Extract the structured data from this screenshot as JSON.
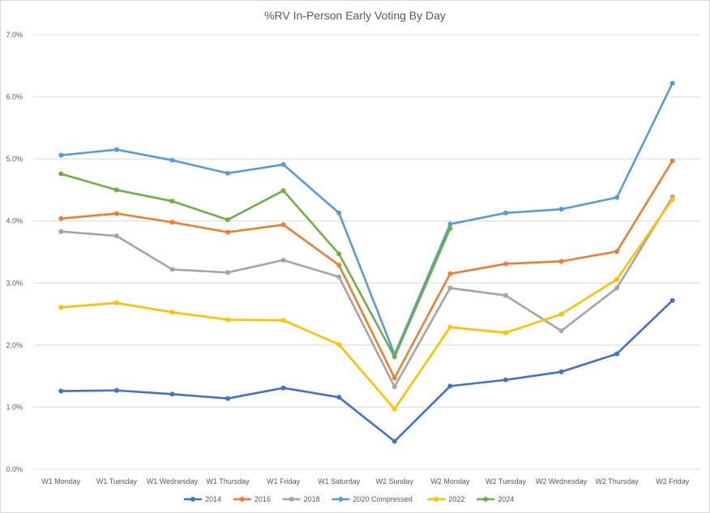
{
  "chart_data": {
    "type": "line",
    "title": "%RV In-Person Early Voting By Day",
    "xlabel": "",
    "ylabel": "",
    "ylim": [
      0,
      7
    ],
    "y_tick_labels": [
      "0.0%",
      "1.0%",
      "2.0%",
      "3.0%",
      "4.0%",
      "5.0%",
      "6.0%",
      "7.0%"
    ],
    "grid": true,
    "legend_position": "bottom",
    "categories": [
      "W1 Monday",
      "W1 Tuesday",
      "W1 Wednesday",
      "W1 Thursday",
      "W1 Friday",
      "W1 Saturday",
      "W2 Sunday",
      "W2 Monday",
      "W2 Tuesday",
      "W2 Wednesday",
      "W2 Thursday",
      "W2 Friday"
    ],
    "series": [
      {
        "name": "2014",
        "color": "#4472C4",
        "values": [
          1.26,
          1.27,
          1.21,
          1.14,
          1.31,
          1.16,
          0.45,
          1.34,
          1.44,
          1.57,
          1.86,
          2.72
        ]
      },
      {
        "name": "2016",
        "color": "#ED7D31",
        "values": [
          4.04,
          4.12,
          3.98,
          3.82,
          3.94,
          3.29,
          1.47,
          3.15,
          3.31,
          3.35,
          3.51,
          4.97
        ]
      },
      {
        "name": "2018",
        "color": "#A5A5A5",
        "values": [
          3.83,
          3.76,
          3.22,
          3.17,
          3.37,
          3.1,
          1.33,
          2.92,
          2.8,
          2.23,
          2.92,
          4.39
        ]
      },
      {
        "name": "2020 Compressed",
        "color": "#5B9BD5",
        "values": [
          5.06,
          5.15,
          4.98,
          4.77,
          4.91,
          4.13,
          1.85,
          3.95,
          4.13,
          4.19,
          4.38,
          6.22
        ]
      },
      {
        "name": "2022",
        "color": "#FFC000",
        "values": [
          2.61,
          2.68,
          2.53,
          2.41,
          2.4,
          2.01,
          0.97,
          2.29,
          2.2,
          2.5,
          3.06,
          4.35
        ]
      },
      {
        "name": "2024",
        "color": "#70AD47",
        "values": [
          4.76,
          4.5,
          4.32,
          4.02,
          4.49,
          3.47,
          1.81,
          3.88,
          null,
          null,
          null,
          null
        ]
      }
    ]
  }
}
